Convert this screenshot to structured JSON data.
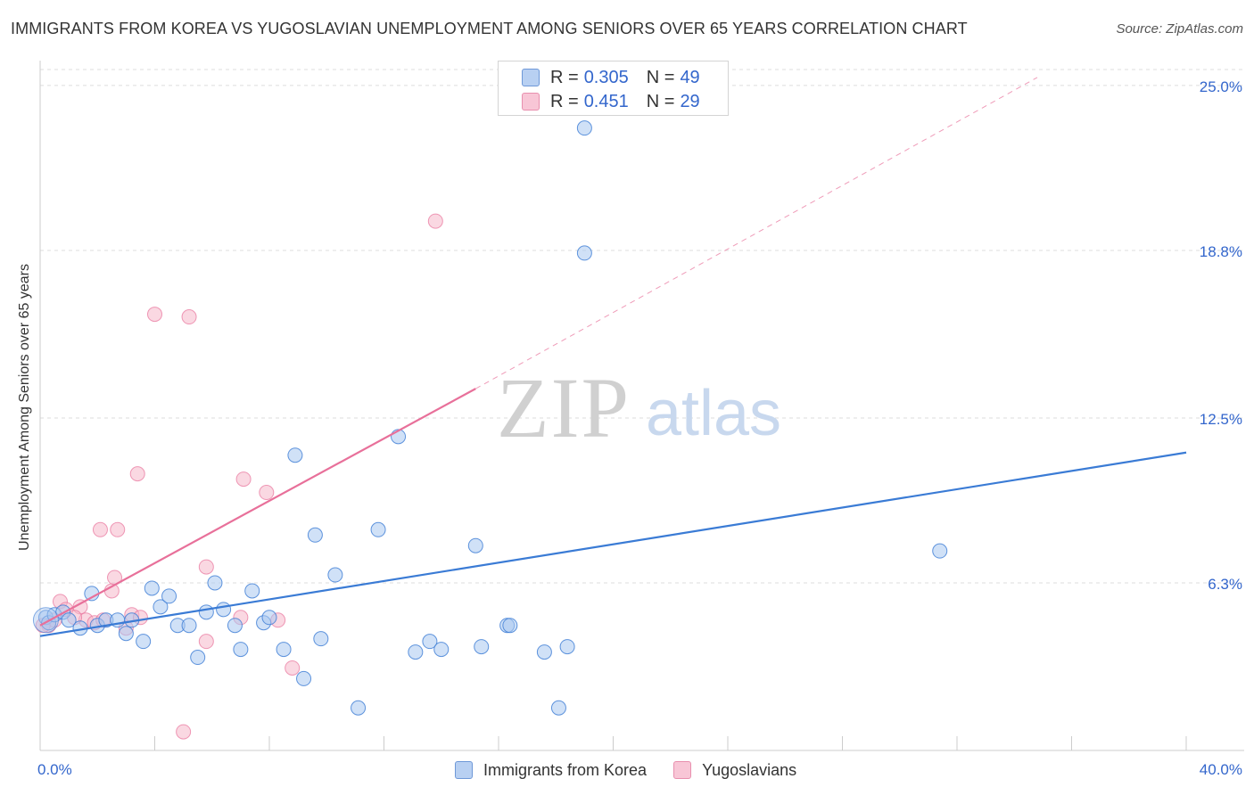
{
  "title": "IMMIGRANTS FROM KOREA VS YUGOSLAVIAN UNEMPLOYMENT AMONG SENIORS OVER 65 YEARS CORRELATION CHART",
  "source": "Source: ZipAtlas.com",
  "legend_top": {
    "rows": [
      {
        "r_label": "R = ",
        "r_value": "0.305",
        "n_label": "N = ",
        "n_value": "49"
      },
      {
        "r_label": "R = ",
        "r_value": "0.451",
        "n_label": "N = ",
        "n_value": "29"
      }
    ]
  },
  "chart_data": {
    "type": "scatter",
    "title": "IMMIGRANTS FROM KOREA VS YUGOSLAVIAN UNEMPLOYMENT AMONG SENIORS OVER 65 YEARS CORRELATION CHART",
    "xlabel": "",
    "ylabel": "Unemployment Among Seniors over 65 years",
    "xlim": [
      0,
      40
    ],
    "ylim": [
      0,
      25.6
    ],
    "x_tick_labels": [
      "0.0%",
      "40.0%"
    ],
    "y_ticks": [
      6.3,
      12.5,
      18.8,
      25.0
    ],
    "y_tick_labels": [
      "6.3%",
      "12.5%",
      "18.8%",
      "25.0%"
    ],
    "watermark": {
      "zip": "ZIP",
      "atlas": "atlas"
    },
    "colors": {
      "korea": "#3a7bd5",
      "korea_fill": "#aac8f0",
      "yugo": "#e8709a",
      "yugo_fill": "#f6b8cb",
      "grid": "#dddddd",
      "tick_text": "#3366cc"
    },
    "series": [
      {
        "name": "Immigrants from Korea",
        "color": "#3a7bd5",
        "trend": {
          "x0": 0,
          "y0": 4.3,
          "x1": 40,
          "y1": 11.2
        },
        "points": [
          [
            0.2,
            5.0
          ],
          [
            0.3,
            4.8
          ],
          [
            0.5,
            5.1
          ],
          [
            0.8,
            5.2
          ],
          [
            1.0,
            4.9
          ],
          [
            1.4,
            4.6
          ],
          [
            1.8,
            5.9
          ],
          [
            2.0,
            4.7
          ],
          [
            2.3,
            4.9
          ],
          [
            2.7,
            4.9
          ],
          [
            3.0,
            4.4
          ],
          [
            3.2,
            4.9
          ],
          [
            3.6,
            4.1
          ],
          [
            3.9,
            6.1
          ],
          [
            4.2,
            5.4
          ],
          [
            4.5,
            5.8
          ],
          [
            4.8,
            4.7
          ],
          [
            5.2,
            4.7
          ],
          [
            5.5,
            3.5
          ],
          [
            5.8,
            5.2
          ],
          [
            6.1,
            6.3
          ],
          [
            6.4,
            5.3
          ],
          [
            6.8,
            4.7
          ],
          [
            7.0,
            3.8
          ],
          [
            7.4,
            6.0
          ],
          [
            7.8,
            4.8
          ],
          [
            8.0,
            5.0
          ],
          [
            8.5,
            3.8
          ],
          [
            8.9,
            11.1
          ],
          [
            9.2,
            2.7
          ],
          [
            9.6,
            8.1
          ],
          [
            9.8,
            4.2
          ],
          [
            10.3,
            6.6
          ],
          [
            11.1,
            1.6
          ],
          [
            11.8,
            8.3
          ],
          [
            12.5,
            11.8
          ],
          [
            13.1,
            3.7
          ],
          [
            13.6,
            4.1
          ],
          [
            14.0,
            3.8
          ],
          [
            15.2,
            7.7
          ],
          [
            15.4,
            3.9
          ],
          [
            16.3,
            4.7
          ],
          [
            16.4,
            4.7
          ],
          [
            17.6,
            3.7
          ],
          [
            18.1,
            1.6
          ],
          [
            18.4,
            3.9
          ],
          [
            19.0,
            18.7
          ],
          [
            19.0,
            23.4
          ],
          [
            31.4,
            7.5
          ]
        ]
      },
      {
        "name": "Yugoslavians",
        "color": "#e8709a",
        "trend": {
          "x0": 0,
          "y0": 4.7,
          "x1": 15.2,
          "y1": 13.6,
          "ext_x1": 34.8,
          "ext_y1": 25.3
        },
        "points": [
          [
            0.3,
            4.7
          ],
          [
            0.5,
            4.9
          ],
          [
            0.7,
            5.6
          ],
          [
            0.9,
            5.3
          ],
          [
            1.4,
            5.4
          ],
          [
            1.6,
            4.9
          ],
          [
            1.9,
            4.8
          ],
          [
            2.1,
            8.3
          ],
          [
            2.2,
            4.9
          ],
          [
            2.5,
            6.0
          ],
          [
            2.6,
            6.5
          ],
          [
            2.7,
            8.3
          ],
          [
            3.0,
            4.6
          ],
          [
            3.2,
            5.1
          ],
          [
            3.4,
            10.4
          ],
          [
            4.0,
            16.4
          ],
          [
            5.0,
            0.7
          ],
          [
            5.2,
            16.3
          ],
          [
            5.8,
            6.9
          ],
          [
            5.8,
            4.1
          ],
          [
            7.0,
            5.0
          ],
          [
            7.1,
            10.2
          ],
          [
            7.9,
            9.7
          ],
          [
            8.3,
            4.9
          ],
          [
            8.8,
            3.1
          ],
          [
            13.8,
            19.9
          ],
          [
            0.1,
            4.7
          ],
          [
            1.2,
            5.0
          ],
          [
            3.5,
            5.0
          ]
        ]
      }
    ]
  }
}
